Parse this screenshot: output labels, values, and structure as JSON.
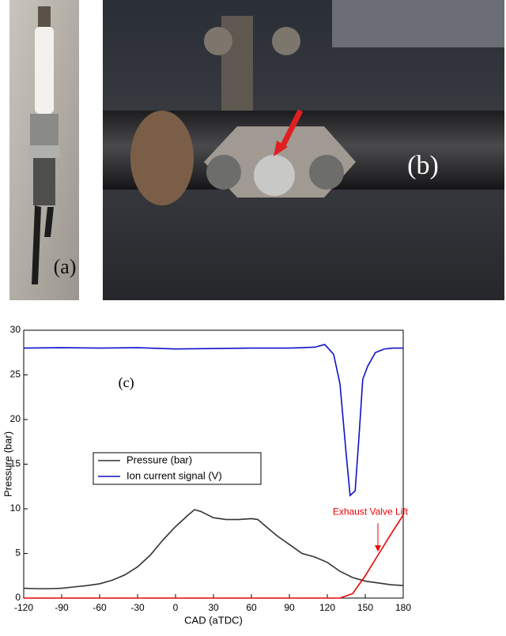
{
  "panels": {
    "a": "(a)",
    "b": "(b)"
  },
  "chart_data": {
    "type": "line",
    "annotation": "(c)",
    "annotation_xy": [
      -39,
      24
    ],
    "xlabel": "CAD (aTDC)",
    "ylabel": "Pressure (bar)",
    "xlim": [
      -120,
      180
    ],
    "ylim": [
      0,
      30
    ],
    "xticks": [
      -120,
      -90,
      -60,
      -30,
      0,
      30,
      60,
      90,
      120,
      150,
      180
    ],
    "yticks": [
      0,
      5,
      10,
      15,
      20,
      25,
      30
    ],
    "legend": "center left",
    "series": [
      {
        "name": "Pressure (bar)",
        "color": "#333333",
        "x": [
          -120,
          -110,
          -100,
          -90,
          -80,
          -70,
          -60,
          -50,
          -40,
          -30,
          -20,
          -10,
          0,
          10,
          15,
          20,
          30,
          40,
          50,
          60,
          65,
          70,
          80,
          90,
          100,
          110,
          120,
          130,
          140,
          150,
          160,
          170,
          180
        ],
        "values": [
          1.1,
          1.05,
          1.05,
          1.1,
          1.25,
          1.4,
          1.6,
          2.0,
          2.6,
          3.5,
          4.8,
          6.5,
          8.0,
          9.3,
          9.9,
          9.7,
          9.0,
          8.8,
          8.8,
          8.9,
          8.8,
          8.2,
          7.0,
          6.0,
          5.0,
          4.6,
          4.0,
          3.0,
          2.3,
          1.9,
          1.7,
          1.5,
          1.4
        ]
      },
      {
        "name": "Ion current signal (V)",
        "color": "#1010cc",
        "x": [
          -120,
          -90,
          -60,
          -30,
          0,
          30,
          60,
          90,
          110,
          118,
          125,
          130,
          135,
          138,
          142,
          145,
          148,
          152,
          158,
          165,
          172,
          180
        ],
        "values": [
          28,
          28.05,
          28,
          28.05,
          27.9,
          27.95,
          28,
          28,
          28.1,
          28.4,
          27.3,
          24,
          16,
          11.5,
          12,
          18,
          24.5,
          26,
          27.5,
          27.9,
          28,
          28
        ]
      },
      {
        "color": "#ee0000",
        "x": [
          -120,
          130,
          140,
          150,
          160,
          170,
          180
        ],
        "values": [
          0,
          0,
          0.5,
          2.5,
          4.8,
          7.1,
          9.3
        ]
      }
    ],
    "red_label": "Exhaust Valve Lift",
    "red_label_xy": [
      154,
      9.6
    ],
    "red_arrow": [
      160,
      8.4,
      160,
      5.2
    ]
  }
}
